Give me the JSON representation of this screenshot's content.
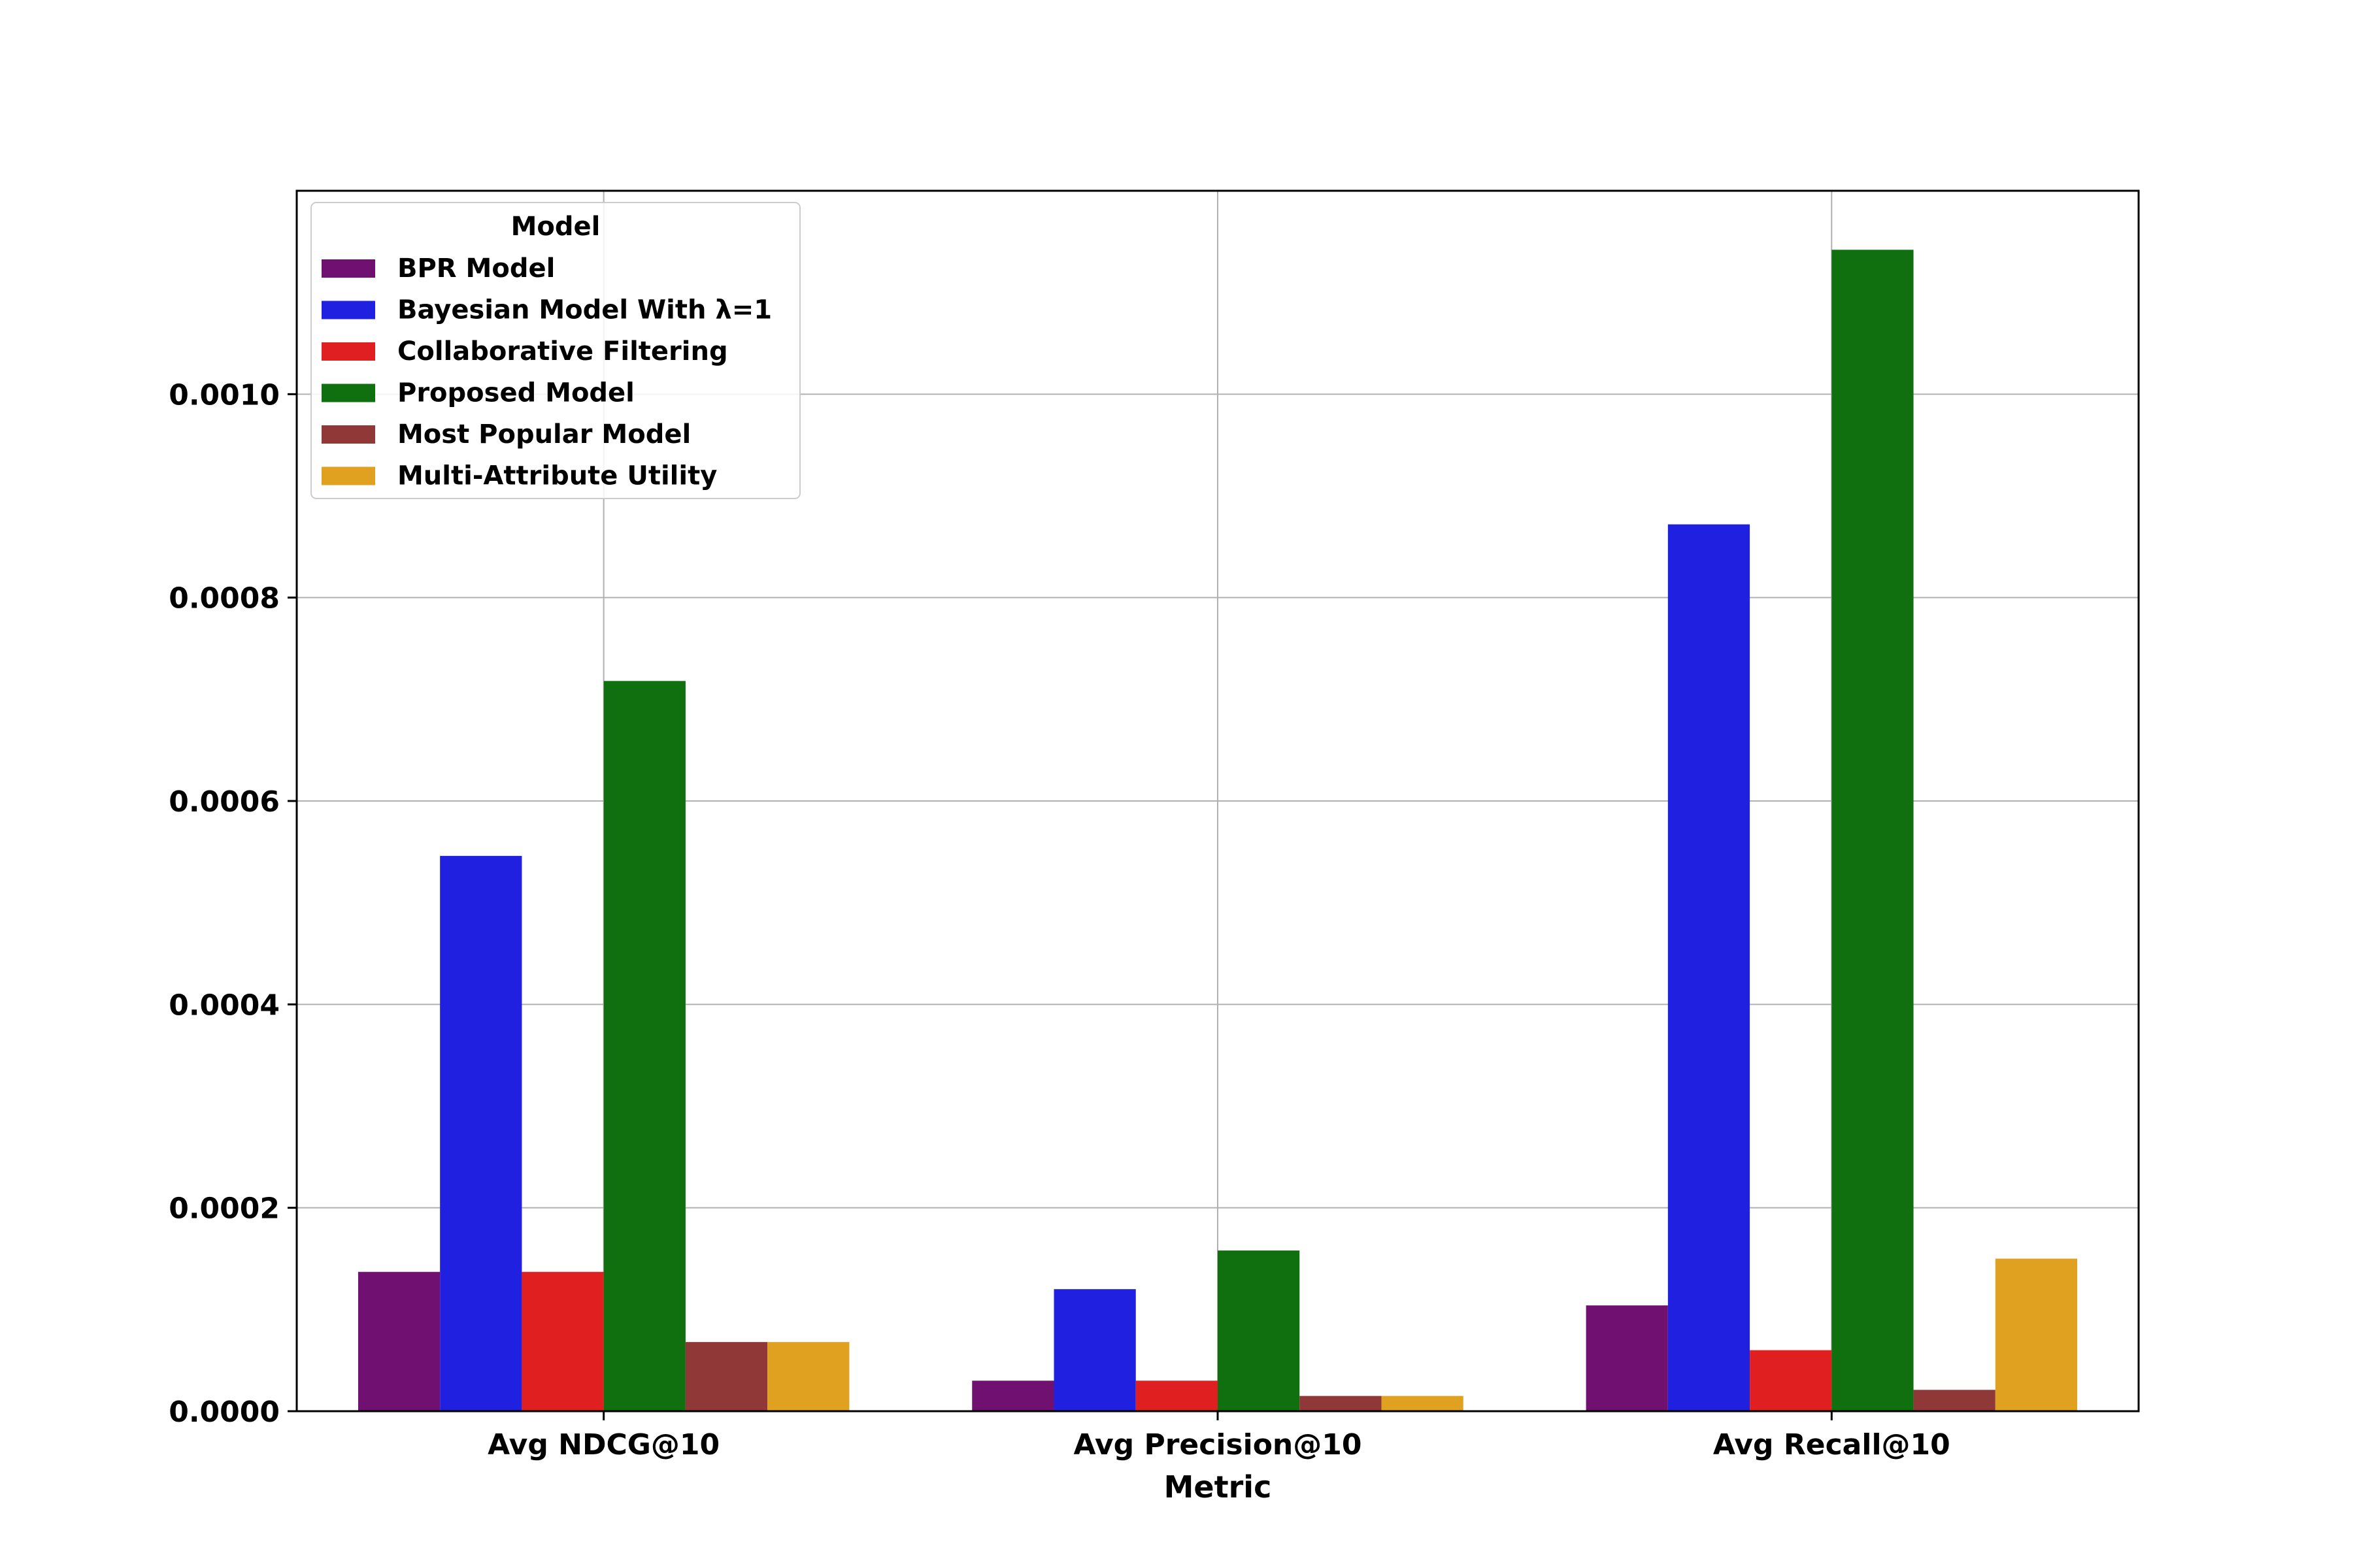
{
  "chart_data": {
    "type": "bar",
    "xlabel": "Metric",
    "ylabel": "",
    "categories": [
      "Avg NDCG@10",
      "Avg Precision@10",
      "Avg Recall@10"
    ],
    "ylim": [
      0,
      0.0012
    ],
    "yticks": [
      "0.0000",
      "0.0002",
      "0.0004",
      "0.0006",
      "0.0008",
      "0.0010"
    ],
    "ytick_values": [
      0,
      0.0002,
      0.0004,
      0.0006,
      0.0008,
      0.001
    ],
    "grid": true,
    "legend": {
      "title": "Model",
      "position": "top-left"
    },
    "series": [
      {
        "name": "BPR Model",
        "color": "#701070",
        "values": [
          0.000137,
          3e-05,
          0.000104
        ]
      },
      {
        "name": "Bayesian Model With λ=1",
        "color": "#2020e0",
        "values": [
          0.000546,
          0.00012,
          0.000872
        ]
      },
      {
        "name": "Collaborative Filtering",
        "color": "#e02020",
        "values": [
          0.000137,
          3e-05,
          6e-05
        ]
      },
      {
        "name": "Proposed Model",
        "color": "#107010",
        "values": [
          0.000718,
          0.000158,
          0.001142
        ]
      },
      {
        "name": "Most Popular Model",
        "color": "#903838",
        "values": [
          6.8e-05,
          1.5e-05,
          2.1e-05
        ]
      },
      {
        "name": "Multi-Attribute Utility",
        "color": "#e0a020",
        "values": [
          6.8e-05,
          1.5e-05,
          0.00015
        ]
      }
    ]
  }
}
